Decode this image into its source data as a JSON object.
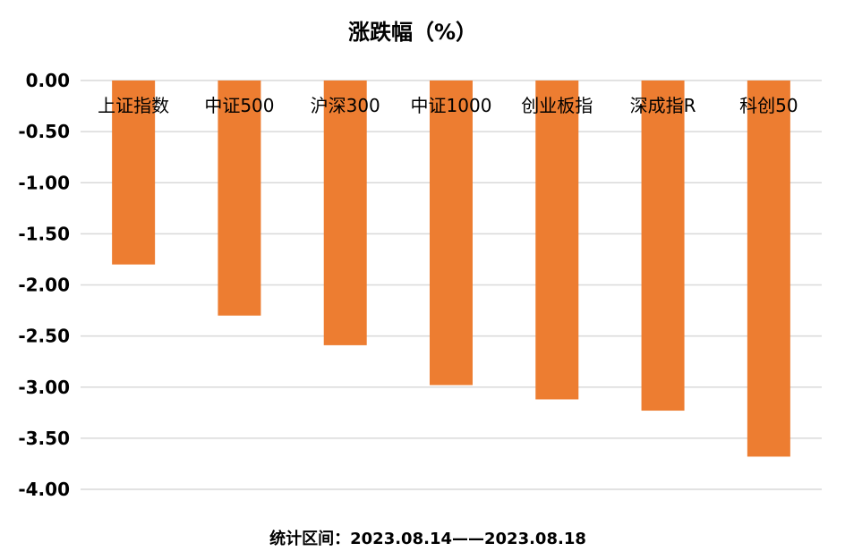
{
  "chart_data": {
    "type": "bar",
    "title": "涨跌幅（%）",
    "categories": [
      "上证指数",
      "中证500",
      "沪深300",
      "中证1000",
      "创业板指",
      "深成指R",
      "科创50"
    ],
    "series": [
      {
        "values": [
          -1.8,
          -2.3,
          -2.59,
          -2.98,
          -3.12,
          -3.23,
          -3.68
        ],
        "color": "#ED7D31"
      }
    ],
    "ylim": [
      -4.0,
      0.0
    ],
    "yticks": [
      "0.00",
      "-0.50",
      "-1.00",
      "-1.50",
      "-2.00",
      "-2.50",
      "-3.00",
      "-3.50",
      "-4.00"
    ],
    "grid": true,
    "legend": "none",
    "footer": "统计区间：2023.08.14——2023.08.18"
  }
}
